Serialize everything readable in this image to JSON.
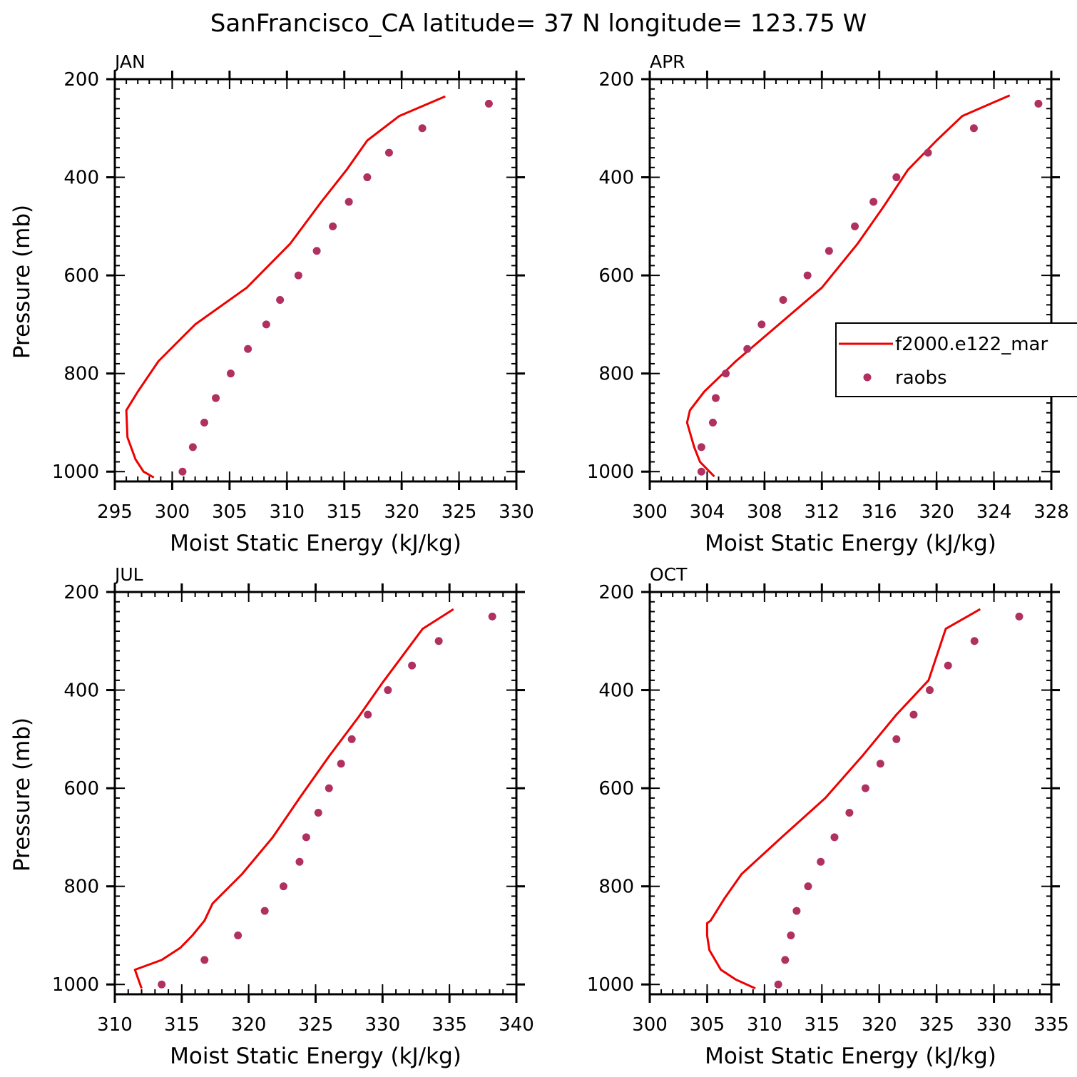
{
  "figure": {
    "title": "SanFrancisco_CA  latitude= 37 N longitude= 123.75 W"
  },
  "colors": {
    "model_line": "#ee0000",
    "raobs_marker": "#b03060",
    "axes": "#000000",
    "background": "#ffffff"
  },
  "legend": {
    "entries": [
      {
        "label": "f2000.e122_mar",
        "kind": "line"
      },
      {
        "label": "raobs",
        "kind": "marker"
      }
    ],
    "placement": "right of APR panel, clipped at figure edge"
  },
  "chart_data": [
    {
      "type": "line+scatter",
      "panel_label": "JAN",
      "xlabel": "Moist Static Energy (kJ/kg)",
      "ylabel": "Pressure (mb)",
      "xlim": [
        295,
        330
      ],
      "ylim": [
        1020,
        200
      ],
      "x_ticks": [
        295,
        300,
        305,
        310,
        315,
        320,
        325,
        330
      ],
      "y_ticks": [
        200,
        400,
        600,
        800,
        1000
      ],
      "series": [
        {
          "name": "f2000.e122_mar",
          "kind": "line",
          "x": [
            298.4,
            297.5,
            296.8,
            296.1,
            296.0,
            297.0,
            298.8,
            302.0,
            306.5,
            310.3,
            313.0,
            315.2,
            317.0,
            319.8,
            323.8
          ],
          "y": [
            1012,
            1000,
            975,
            930,
            875,
            837,
            775,
            700,
            625,
            535,
            450,
            385,
            325,
            275,
            235
          ]
        },
        {
          "name": "raobs",
          "kind": "marker",
          "x": [
            300.9,
            301.8,
            302.8,
            303.8,
            305.1,
            306.6,
            308.2,
            309.4,
            311.0,
            312.6,
            314.0,
            315.4,
            317.0,
            318.9,
            321.8,
            327.6
          ],
          "y": [
            1000,
            950,
            900,
            850,
            800,
            750,
            700,
            650,
            600,
            550,
            500,
            450,
            400,
            350,
            300,
            250
          ]
        }
      ]
    },
    {
      "type": "line+scatter",
      "panel_label": "APR",
      "xlabel": "Moist Static Energy (kJ/kg)",
      "ylabel": "",
      "xlim": [
        300,
        328
      ],
      "ylim": [
        1020,
        200
      ],
      "x_ticks": [
        300,
        304,
        308,
        312,
        316,
        320,
        324,
        328
      ],
      "y_ticks": [
        200,
        400,
        600,
        800,
        1000
      ],
      "series": [
        {
          "name": "f2000.e122_mar",
          "kind": "line",
          "x": [
            304.5,
            304.0,
            303.5,
            303.1,
            302.6,
            302.8,
            303.8,
            306.0,
            309.0,
            312.0,
            314.5,
            316.3,
            318.0,
            320.0,
            321.8,
            325.1
          ],
          "y": [
            1010,
            995,
            980,
            950,
            900,
            875,
            837,
            775,
            700,
            625,
            535,
            460,
            385,
            325,
            275,
            233
          ]
        },
        {
          "name": "raobs",
          "kind": "marker",
          "x": [
            303.6,
            303.6,
            304.4,
            304.6,
            305.3,
            306.8,
            307.8,
            309.3,
            311.0,
            312.5,
            314.3,
            315.6,
            317.2,
            319.4,
            322.6,
            327.1
          ],
          "y": [
            1000,
            950,
            900,
            850,
            800,
            750,
            700,
            650,
            600,
            550,
            500,
            450,
            400,
            350,
            300,
            250
          ]
        }
      ]
    },
    {
      "type": "line+scatter",
      "panel_label": "JUL",
      "xlabel": "Moist Static Energy (kJ/kg)",
      "ylabel": "Pressure (mb)",
      "xlim": [
        310,
        340
      ],
      "ylim": [
        1020,
        200
      ],
      "x_ticks": [
        310,
        315,
        320,
        325,
        330,
        335,
        340
      ],
      "y_ticks": [
        200,
        400,
        600,
        800,
        1000
      ],
      "series": [
        {
          "name": "f2000.e122_mar",
          "kind": "line",
          "x": [
            312.0,
            311.5,
            313.5,
            314.9,
            315.8,
            316.7,
            317.3,
            319.5,
            321.8,
            323.8,
            326.0,
            328.2,
            330.0,
            333.0,
            335.3
          ],
          "y": [
            1008,
            970,
            950,
            925,
            900,
            870,
            835,
            775,
            700,
            620,
            535,
            455,
            385,
            275,
            235
          ]
        },
        {
          "name": "raobs",
          "kind": "marker",
          "x": [
            313.5,
            316.7,
            319.2,
            321.2,
            322.6,
            323.8,
            324.3,
            325.2,
            326.0,
            326.9,
            327.7,
            328.9,
            330.4,
            332.2,
            334.2,
            338.2
          ],
          "y": [
            1000,
            950,
            900,
            850,
            800,
            750,
            700,
            650,
            600,
            550,
            500,
            450,
            400,
            350,
            300,
            250
          ]
        }
      ]
    },
    {
      "type": "line+scatter",
      "panel_label": "OCT",
      "xlabel": "Moist Static Energy (kJ/kg)",
      "ylabel": "",
      "xlim": [
        300,
        335
      ],
      "ylim": [
        1020,
        200
      ],
      "x_ticks": [
        300,
        305,
        310,
        315,
        320,
        325,
        330,
        335
      ],
      "y_ticks": [
        200,
        400,
        600,
        800,
        1000
      ],
      "series": [
        {
          "name": "f2000.e122_mar",
          "kind": "line",
          "x": [
            309.2,
            307.5,
            306.2,
            305.2,
            305.0,
            305.0,
            305.3,
            306.5,
            308.0,
            311.5,
            315.3,
            318.5,
            321.5,
            324.3,
            325.8,
            328.8
          ],
          "y": [
            1008,
            990,
            970,
            930,
            900,
            875,
            870,
            825,
            775,
            700,
            620,
            535,
            450,
            380,
            275,
            235
          ]
        },
        {
          "name": "raobs",
          "kind": "marker",
          "x": [
            311.2,
            311.8,
            312.3,
            312.8,
            313.8,
            314.9,
            316.1,
            317.4,
            318.8,
            320.1,
            321.5,
            323.0,
            324.4,
            326.0,
            328.3,
            332.2
          ],
          "y": [
            1000,
            950,
            900,
            850,
            800,
            750,
            700,
            650,
            600,
            550,
            500,
            450,
            400,
            350,
            300,
            250
          ]
        }
      ]
    }
  ]
}
